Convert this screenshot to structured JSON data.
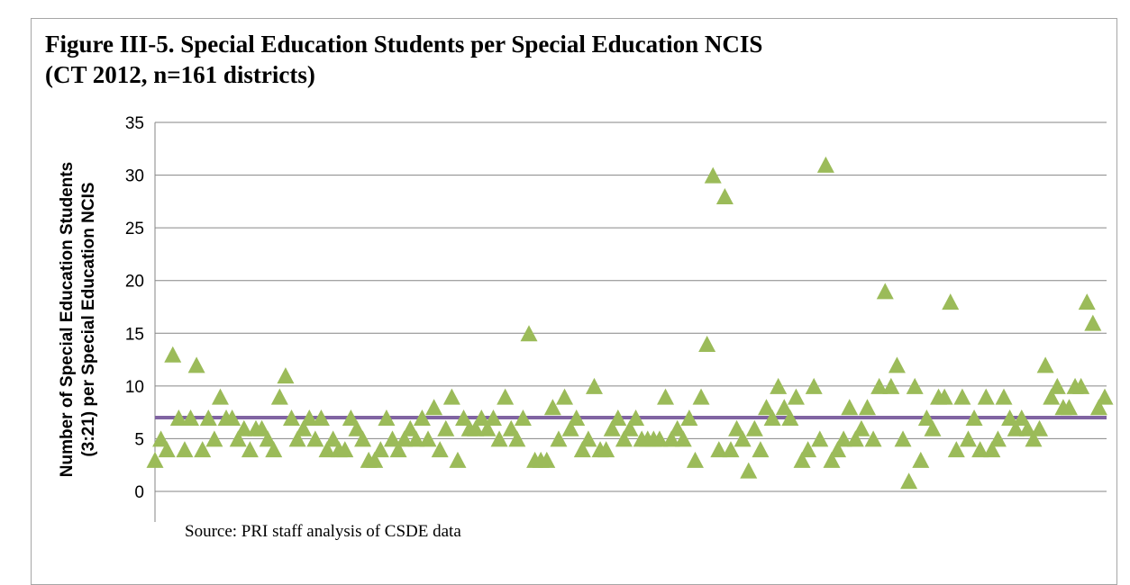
{
  "chart_data": {
    "type": "scatter",
    "title_line1": "Figure III-5.  Special Education Students per Special Education NCIS",
    "title_line2": "(CT 2012, n=161 districts)",
    "ylabel_line1": "Number of Special Education  Students",
    "ylabel_line2": "(3:21) per Special Education NCIS",
    "xlabel": "",
    "ylim": [
      0,
      35
    ],
    "y_ticks": [
      "0",
      "5",
      "10",
      "15",
      "20",
      "25",
      "30",
      "35"
    ],
    "grid": true,
    "marker": "triangle",
    "marker_color": "#9bbb59",
    "reference_line": {
      "y": 7,
      "color": "#8064a2"
    },
    "source": "Source:  PRI staff analysis of CSDE data",
    "values": [
      3,
      5,
      4,
      13,
      7,
      4,
      7,
      12,
      4,
      7,
      5,
      9,
      7,
      7,
      5,
      6,
      4,
      6,
      6,
      5,
      4,
      9,
      11,
      7,
      5,
      6,
      7,
      5,
      7,
      4,
      5,
      4,
      4,
      7,
      6,
      5,
      3,
      3,
      4,
      7,
      5,
      4,
      5,
      6,
      5,
      7,
      5,
      8,
      4,
      6,
      9,
      3,
      7,
      6,
      6,
      7,
      6,
      7,
      5,
      9,
      6,
      5,
      7,
      15,
      3,
      3,
      3,
      8,
      5,
      9,
      6,
      7,
      4,
      5,
      10,
      4,
      4,
      6,
      7,
      5,
      6,
      7,
      5,
      5,
      5,
      5,
      9,
      5,
      6,
      5,
      7,
      3,
      9,
      14,
      30,
      4,
      28,
      4,
      6,
      5,
      2,
      6,
      4,
      8,
      7,
      10,
      8,
      7,
      9,
      3,
      4,
      10,
      5,
      31,
      3,
      4,
      5,
      8,
      5,
      6,
      8,
      5,
      10,
      19,
      10,
      12,
      5,
      1,
      10,
      3,
      7,
      6,
      9,
      9,
      18,
      4,
      9,
      5,
      7,
      4,
      9,
      4,
      5,
      9,
      7,
      6,
      7,
      6,
      5,
      6,
      12,
      9,
      10,
      8,
      8,
      10,
      10,
      18,
      16,
      8,
      9
    ]
  }
}
